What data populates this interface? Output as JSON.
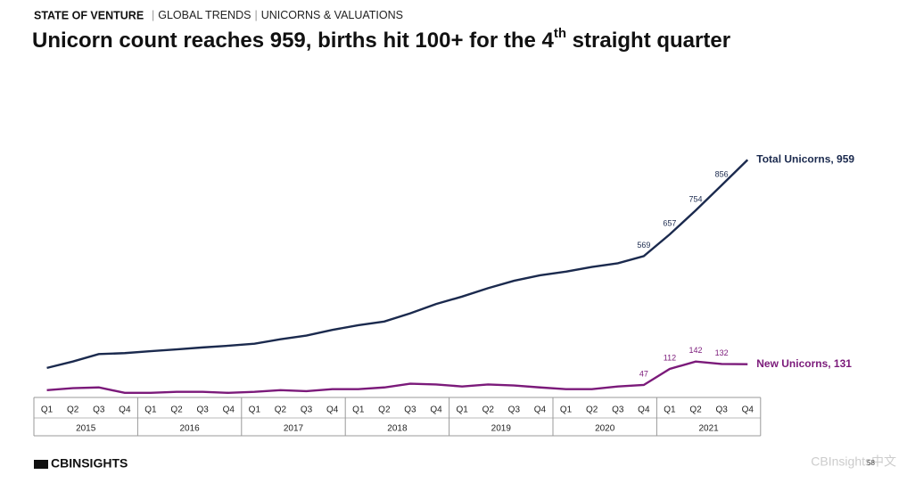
{
  "header": {
    "section": "STATE OF VENTURE",
    "crumbs": [
      "GLOBAL TRENDS",
      "UNICORNS & VALUATIONS"
    ]
  },
  "title": [
    "Unicorn count reaches 959, births hit 100+ for the 4",
    "th",
    " straight quarter"
  ],
  "chart_data": {
    "type": "line",
    "categories": [
      "Q1",
      "Q2",
      "Q3",
      "Q4",
      "Q1",
      "Q2",
      "Q3",
      "Q4",
      "Q1",
      "Q2",
      "Q3",
      "Q4",
      "Q1",
      "Q2",
      "Q3",
      "Q4",
      "Q1",
      "Q2",
      "Q3",
      "Q4",
      "Q1",
      "Q2",
      "Q3",
      "Q4",
      "Q1",
      "Q2",
      "Q3",
      "Q4"
    ],
    "years": [
      "2015",
      "2016",
      "2017",
      "2018",
      "2019",
      "2020",
      "2021"
    ],
    "ylim": [
      0,
      1000
    ],
    "series": [
      {
        "name": "Total Unicorns, 959",
        "color": "#1b2a4e",
        "values": [
          116,
          142,
          172,
          176,
          184,
          191,
          199,
          206,
          214,
          232,
          247,
          270,
          289,
          304,
          337,
          375,
          405,
          439,
          469,
          491,
          506,
          525,
          540,
          569,
          657,
          754,
          856,
          959
        ],
        "value_labels": [
          null,
          null,
          null,
          null,
          null,
          null,
          null,
          null,
          null,
          null,
          null,
          null,
          null,
          null,
          null,
          null,
          null,
          null,
          null,
          null,
          null,
          null,
          null,
          "569",
          "657",
          "754",
          "856",
          null
        ]
      },
      {
        "name": "New Unicorns, 131",
        "color": "#7b1a7a",
        "values": [
          26,
          34,
          37,
          15,
          15,
          19,
          19,
          15,
          19,
          26,
          22,
          30,
          30,
          37,
          52,
          49,
          41,
          49,
          45,
          37,
          30,
          30,
          41,
          47,
          112,
          142,
          132,
          131
        ],
        "value_labels": [
          null,
          null,
          null,
          null,
          null,
          null,
          null,
          null,
          null,
          null,
          null,
          null,
          null,
          null,
          null,
          null,
          null,
          null,
          null,
          null,
          null,
          null,
          null,
          "47",
          "112",
          "142",
          "132",
          null
        ]
      }
    ]
  },
  "footer": {
    "logo": "CBINSIGHTS",
    "page": "58",
    "watermark": "CBInsights中文"
  }
}
